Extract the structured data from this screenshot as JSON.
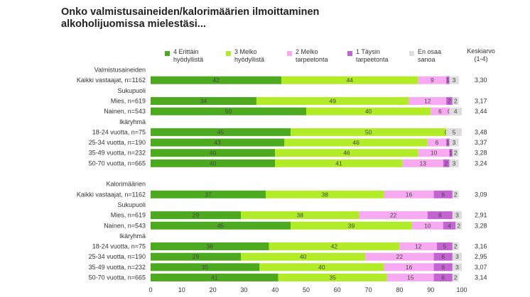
{
  "chart_data": {
    "type": "bar",
    "stacked": true,
    "orientation": "horizontal",
    "title": "Onko valmistusaineiden/kalorimäärien ilmoittaminen\nalkoholijuomissa mielestäsi...",
    "legend": [
      {
        "name": "4 Erittäin\nhyödyllistä",
        "color": "#4daa1e"
      },
      {
        "name": "3 Melko\nhyödyllistä",
        "color": "#b2ec28"
      },
      {
        "name": "2 Melko\ntarpeetonta",
        "color": "#f7aaf2"
      },
      {
        "name": "1 Täysin\ntarpeetonta",
        "color": "#c463d2"
      },
      {
        "name": "En osaa\nsanoa",
        "color": "#dddddd"
      }
    ],
    "mean_header": "Keskiarvo\n(1-4)",
    "xlim": [
      0,
      100
    ],
    "xticks": [
      0,
      10,
      20,
      30,
      40,
      50,
      60,
      70,
      80,
      90,
      100
    ],
    "rows": [
      {
        "kind": "header",
        "label": "Valmistusaineiden"
      },
      {
        "kind": "bar",
        "label": "Kaikki vastaajat, n=1162",
        "values": [
          42,
          44,
          9,
          1,
          3
        ],
        "mean": "3,30"
      },
      {
        "kind": "header",
        "label": "Sukupuoli"
      },
      {
        "kind": "bar",
        "label": "Mies, n=619",
        "values": [
          34,
          49,
          12,
          2,
          2
        ],
        "mean": "3,17"
      },
      {
        "kind": "bar",
        "label": "Nainen, n=543",
        "values": [
          50,
          40,
          6,
          0,
          4
        ],
        "mean": "3,44"
      },
      {
        "kind": "header",
        "label": "Ikäryhmä"
      },
      {
        "kind": "bar",
        "label": "18-24 vuotta, n=75",
        "values": [
          45,
          50,
          0,
          0,
          5
        ],
        "mean": "3,48"
      },
      {
        "kind": "bar",
        "label": "25-34 vuotta, n=190",
        "values": [
          43,
          46,
          6,
          1,
          3
        ],
        "mean": "3,37"
      },
      {
        "kind": "bar",
        "label": "35-49 vuotta, n=232",
        "values": [
          40,
          46,
          10,
          1,
          2
        ],
        "mean": "3,28"
      },
      {
        "kind": "bar",
        "label": "50-70 vuotta, n=665",
        "values": [
          40,
          41,
          13,
          2,
          3
        ],
        "mean": "3,24"
      },
      {
        "kind": "spacer",
        "label": ""
      },
      {
        "kind": "header",
        "label": "Kalorimäärien"
      },
      {
        "kind": "bar",
        "label": "Kaikki vastaajat, n=1162",
        "values": [
          37,
          38,
          16,
          6,
          2
        ],
        "mean": "3,09"
      },
      {
        "kind": "header",
        "label": "Sukupuoli"
      },
      {
        "kind": "bar",
        "label": "Mies, n=619",
        "values": [
          29,
          38,
          22,
          8,
          3
        ],
        "mean": "2,91"
      },
      {
        "kind": "bar",
        "label": "Nainen, n=543",
        "values": [
          45,
          39,
          10,
          4,
          2
        ],
        "mean": "3,28"
      },
      {
        "kind": "header",
        "label": "Ikäryhmä"
      },
      {
        "kind": "bar",
        "label": "18-24 vuotta, n=75",
        "values": [
          38,
          42,
          12,
          5,
          2
        ],
        "mean": "3,16"
      },
      {
        "kind": "bar",
        "label": "25-34 vuotta, n=190",
        "values": [
          29,
          40,
          22,
          6,
          3
        ],
        "mean": "2,95"
      },
      {
        "kind": "bar",
        "label": "35-49 vuotta, n=232",
        "values": [
          35,
          40,
          16,
          6,
          3
        ],
        "mean": "3,07"
      },
      {
        "kind": "bar",
        "label": "50-70 vuotta, n=665",
        "values": [
          41,
          35,
          15,
          6,
          2
        ],
        "mean": "3,14"
      }
    ]
  }
}
